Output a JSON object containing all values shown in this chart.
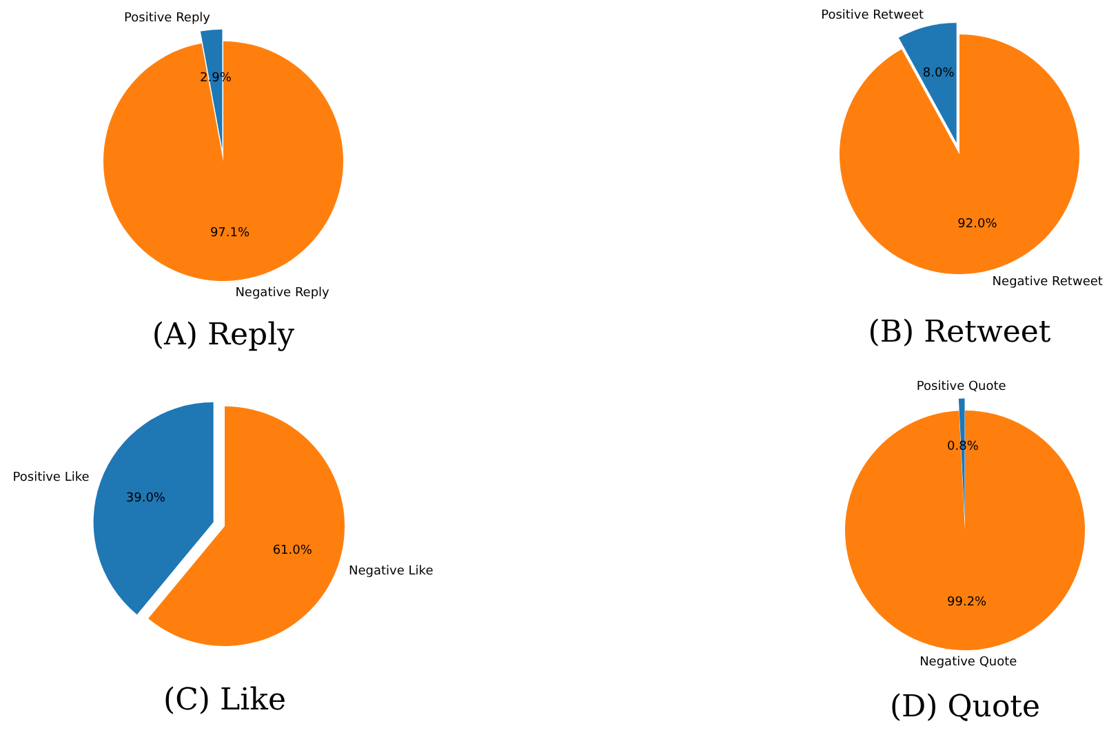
{
  "chart_data": [
    {
      "type": "pie",
      "title": "(A) Reply",
      "categories": [
        "Positive Reply",
        "Negative Reply"
      ],
      "values": [
        2.9,
        97.1
      ],
      "colors": [
        "#1f77b4",
        "#ff7f0e"
      ],
      "value_labels": [
        "2.9%",
        "97.1%"
      ]
    },
    {
      "type": "pie",
      "title": "(B) Retweet",
      "categories": [
        "Positive Retweet",
        "Negative Retweet"
      ],
      "values": [
        8.0,
        92.0
      ],
      "colors": [
        "#1f77b4",
        "#ff7f0e"
      ],
      "value_labels": [
        "8.0%",
        "92.0%"
      ]
    },
    {
      "type": "pie",
      "title": "(C) Like",
      "categories": [
        "Positive Like",
        "Negative Like"
      ],
      "values": [
        39.0,
        61.0
      ],
      "colors": [
        "#1f77b4",
        "#ff7f0e"
      ],
      "value_labels": [
        "39.0%",
        "61.0%"
      ]
    },
    {
      "type": "pie",
      "title": "(D) Quote",
      "categories": [
        "Positive Quote",
        "Negative Quote"
      ],
      "values": [
        0.8,
        99.2
      ],
      "colors": [
        "#1f77b4",
        "#ff7f0e"
      ],
      "value_labels": [
        "0.8%",
        "99.2%"
      ]
    }
  ]
}
